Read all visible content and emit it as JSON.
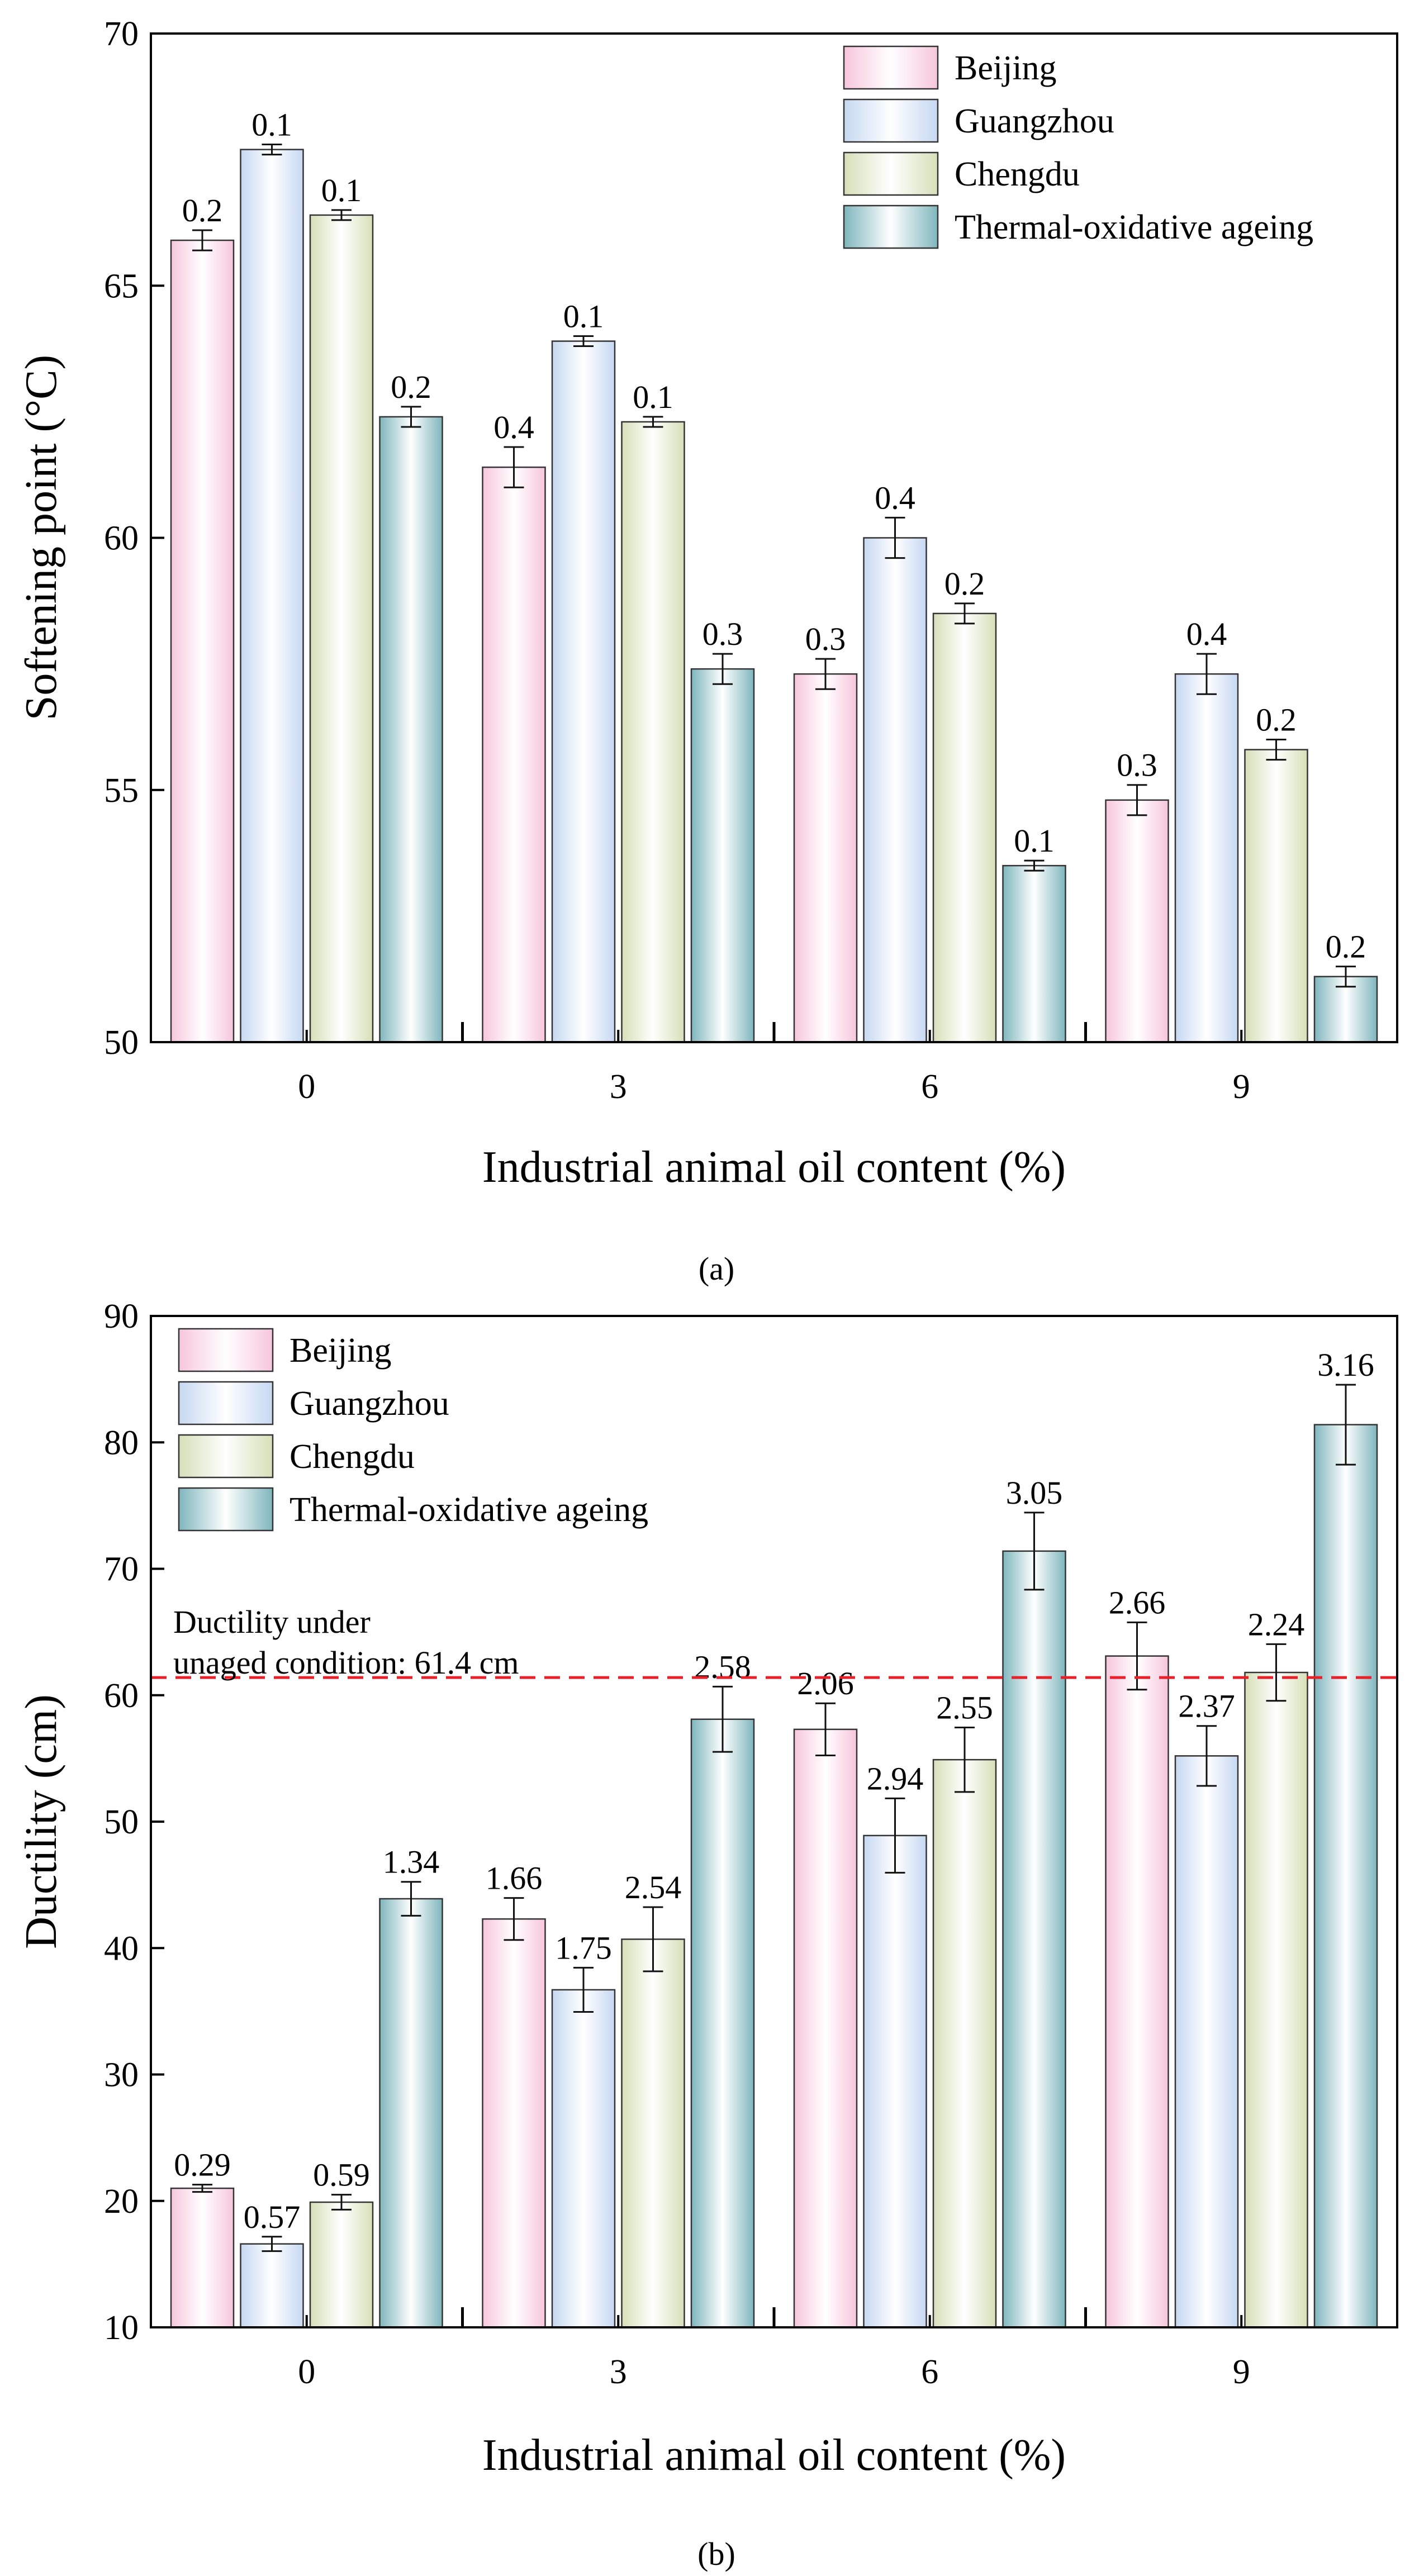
{
  "chart_data": [
    {
      "type": "bar",
      "panel": "(a)",
      "categories": [
        "0",
        "3",
        "6",
        "9"
      ],
      "series": [
        {
          "name": "Beijing",
          "values": [
            65.9,
            61.4,
            57.3,
            54.8
          ],
          "errors": [
            0.2,
            0.4,
            0.3,
            0.3
          ],
          "error_labels": [
            "0.2",
            "0.4",
            "0.3",
            "0.3"
          ]
        },
        {
          "name": "Guangzhou",
          "values": [
            67.7,
            63.9,
            60.0,
            57.3
          ],
          "errors": [
            0.1,
            0.1,
            0.4,
            0.4
          ],
          "error_labels": [
            "0.1",
            "0.1",
            "0.4",
            "0.4"
          ]
        },
        {
          "name": "Chengdu",
          "values": [
            66.4,
            62.3,
            58.5,
            55.8
          ],
          "errors": [
            0.1,
            0.1,
            0.2,
            0.2
          ],
          "error_labels": [
            "0.1",
            "0.1",
            "0.2",
            "0.2"
          ]
        },
        {
          "name": "Thermal-oxidative ageing",
          "values": [
            62.4,
            57.4,
            53.5,
            51.3
          ],
          "errors": [
            0.2,
            0.3,
            0.1,
            0.2
          ],
          "error_labels": [
            "0.2",
            "0.3",
            "0.1",
            "0.2"
          ]
        }
      ],
      "xlabel": "Industrial animal oil content (%)",
      "ylabel": "Softening point (°C)",
      "ylim": [
        50,
        70
      ],
      "yticks": [
        "50",
        "55",
        "60",
        "65",
        "70"
      ],
      "legend": "top-right",
      "caption": "(a)"
    },
    {
      "type": "bar",
      "panel": "(b)",
      "categories": [
        "0",
        "3",
        "6",
        "9"
      ],
      "series": [
        {
          "name": "Beijing",
          "values": [
            21.0,
            42.3,
            57.3,
            63.1
          ],
          "errors": [
            0.29,
            1.66,
            2.06,
            2.66
          ],
          "error_labels": [
            "0.29",
            "1.66",
            "2.06",
            "2.66"
          ]
        },
        {
          "name": "Guangzhou",
          "values": [
            16.6,
            36.7,
            48.9,
            55.2
          ],
          "errors": [
            0.57,
            1.75,
            2.94,
            2.37
          ],
          "error_labels": [
            "0.57",
            "1.75",
            "2.94",
            "2.37"
          ]
        },
        {
          "name": "Chengdu",
          "values": [
            19.9,
            40.7,
            54.9,
            61.8
          ],
          "errors": [
            0.59,
            2.54,
            2.55,
            2.24
          ],
          "error_labels": [
            "0.59",
            "2.54",
            "2.55",
            "2.24"
          ]
        },
        {
          "name": "Thermal-oxidative ageing",
          "values": [
            43.9,
            58.1,
            71.4,
            81.4
          ],
          "errors": [
            1.34,
            2.58,
            3.05,
            3.16
          ],
          "error_labels": [
            "1.34",
            "2.58",
            "3.05",
            "3.16"
          ]
        }
      ],
      "xlabel": "Industrial animal oil content (%)",
      "ylabel": "Ductility (cm)",
      "ylim": [
        10,
        90
      ],
      "yticks": [
        "10",
        "20",
        "30",
        "40",
        "50",
        "60",
        "70",
        "80",
        "90"
      ],
      "legend": "top-left",
      "reference_line": {
        "value": 61.4,
        "color": "#e8202a",
        "style": "dashed"
      },
      "annotation": [
        "Ductility under",
        "unaged condition: 61.4 cm"
      ],
      "caption": "(b)"
    }
  ],
  "colors": {
    "Beijing": "#f7c6dc",
    "Guangzhou": "#c6d8f2",
    "Chengdu": "#d6dfb8",
    "Thermal-oxidative ageing": "#7fb6bd"
  }
}
